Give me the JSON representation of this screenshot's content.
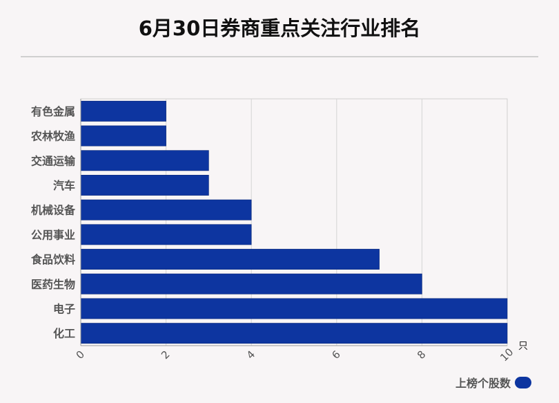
{
  "chart_data": {
    "type": "bar",
    "orientation": "horizontal",
    "title": "6月30日券商重点关注行业排名",
    "categories": [
      "有色金属",
      "农林牧渔",
      "交通运输",
      "汽车",
      "机械设备",
      "公用事业",
      "食品饮料",
      "医药生物",
      "电子",
      "化工"
    ],
    "series": [
      {
        "name": "上榜个股数",
        "values": [
          2,
          2,
          3,
          3,
          4,
          4,
          7,
          8,
          10,
          10
        ]
      }
    ],
    "xlim": [
      0,
      10
    ],
    "xticks": [
      "0",
      "2",
      "4",
      "6",
      "8",
      "10"
    ],
    "xunit": "只",
    "grid": true,
    "legend_position": "bottom-right",
    "bar_color": "#0d35a0"
  }
}
